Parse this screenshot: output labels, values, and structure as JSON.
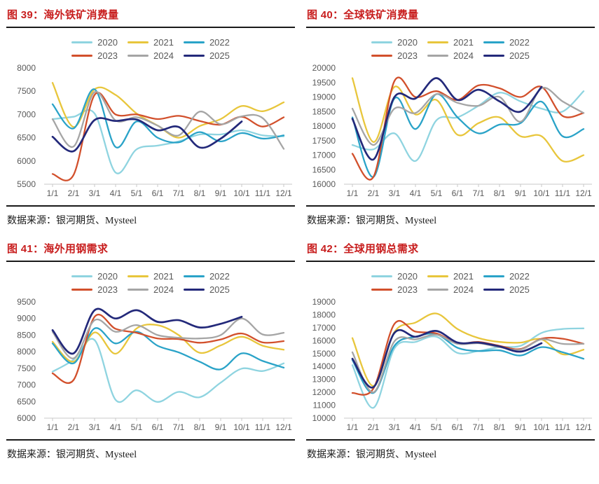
{
  "styles": {
    "title_color": "#c81e1e",
    "axis_text_color": "#595959",
    "axis_line_color": "#c9c9c9",
    "rule_color": "#1a1a1a",
    "background": "#ffffff"
  },
  "series_colors": {
    "2020": "#8fd4e0",
    "2021": "#e8c63c",
    "2022": "#2aa3c8",
    "2023": "#d2502c",
    "2024": "#a5a5a5",
    "2025": "#23297a"
  },
  "chart_data": [
    {
      "type": "line",
      "title": "图 39：海外铁矿消费量",
      "source": "数据来源：银河期货、Mysteel",
      "legend_position": "top",
      "grid": false,
      "x": [
        "1/1",
        "2/1",
        "3/1",
        "4/1",
        "5/1",
        "6/1",
        "7/1",
        "8/1",
        "9/1",
        "10/1",
        "11/1",
        "12/1"
      ],
      "ylim": [
        5500,
        8000
      ],
      "ystep": 500,
      "series": [
        {
          "name": "2020",
          "values": [
            6900,
            6950,
            7020,
            5750,
            6250,
            6330,
            6420,
            6570,
            6570,
            6660,
            6550,
            6530
          ]
        },
        {
          "name": "2021",
          "values": [
            7680,
            6730,
            7540,
            7420,
            7020,
            6760,
            6500,
            6750,
            6900,
            7180,
            7070,
            7260
          ]
        },
        {
          "name": "2022",
          "values": [
            7220,
            6700,
            7540,
            6300,
            6850,
            6500,
            6400,
            6620,
            6420,
            6600,
            6480,
            6550
          ]
        },
        {
          "name": "2023",
          "values": [
            5720,
            5700,
            7420,
            7000,
            7000,
            6900,
            6970,
            6860,
            6780,
            6950,
            6740,
            6940
          ]
        },
        {
          "name": "2024",
          "values": [
            6900,
            6310,
            7480,
            6870,
            6940,
            6760,
            6550,
            7060,
            6790,
            6960,
            6920,
            6260
          ]
        },
        {
          "name": "2025",
          "values": [
            6520,
            6210,
            6880,
            6860,
            6890,
            6660,
            6730,
            6290,
            6480,
            6850
          ]
        }
      ]
    },
    {
      "type": "line",
      "title": "图 40：全球铁矿消费量",
      "source": "数据来源：银河期货、Mysteel",
      "legend_position": "top",
      "grid": false,
      "x": [
        "1/1",
        "2/1",
        "3/1",
        "4/1",
        "5/1",
        "6/1",
        "7/1",
        "8/1",
        "9/1",
        "10/1",
        "11/1",
        "12/1"
      ],
      "ylim": [
        16000,
        20000
      ],
      "ystep": 500,
      "series": [
        {
          "name": "2020",
          "values": [
            17350,
            17200,
            17750,
            16800,
            18200,
            18300,
            18700,
            19150,
            18850,
            18600,
            18500,
            19200
          ]
        },
        {
          "name": "2021",
          "values": [
            19650,
            17450,
            19350,
            18400,
            18900,
            17700,
            18100,
            18300,
            17650,
            17650,
            16800,
            17000
          ]
        },
        {
          "name": "2022",
          "values": [
            18300,
            16250,
            18950,
            17900,
            19100,
            18300,
            17750,
            18050,
            18100,
            18840,
            17650,
            17900
          ]
        },
        {
          "name": "2023",
          "values": [
            17050,
            16250,
            19550,
            19000,
            19200,
            18900,
            19400,
            19300,
            19000,
            19350,
            18350,
            18450
          ]
        },
        {
          "name": "2024",
          "values": [
            18600,
            17350,
            18600,
            18450,
            19100,
            18800,
            18700,
            19000,
            18150,
            19300,
            18850,
            18450
          ]
        },
        {
          "name": "2025",
          "values": [
            18250,
            16850,
            19000,
            18950,
            19650,
            18900,
            19250,
            18850,
            18500,
            19350
          ]
        }
      ]
    },
    {
      "type": "line",
      "title": "图 41：海外用钢需求",
      "source": "数据来源：银河期货、Mysteel",
      "legend_position": "top",
      "grid": false,
      "x": [
        "1/1",
        "2/1",
        "3/1",
        "4/1",
        "5/1",
        "6/1",
        "7/1",
        "8/1",
        "9/1",
        "10/1",
        "11/1",
        "12/1"
      ],
      "ylim": [
        6000,
        9500
      ],
      "ystep": 500,
      "series": [
        {
          "name": "2020",
          "values": [
            7400,
            7760,
            8350,
            6550,
            6840,
            6490,
            6790,
            6630,
            7070,
            7490,
            7420,
            7650
          ]
        },
        {
          "name": "2021",
          "values": [
            8300,
            7700,
            8580,
            7940,
            8700,
            8800,
            8500,
            7970,
            8190,
            8450,
            8180,
            8060
          ]
        },
        {
          "name": "2022",
          "values": [
            8250,
            7650,
            8700,
            8250,
            8600,
            8180,
            7980,
            7700,
            7470,
            7950,
            7720,
            7520
          ]
        },
        {
          "name": "2023",
          "values": [
            7350,
            7150,
            9050,
            8690,
            8570,
            8400,
            8380,
            8270,
            8370,
            8550,
            8280,
            8320
          ]
        },
        {
          "name": "2024",
          "values": [
            8600,
            7800,
            8950,
            8600,
            8800,
            8500,
            8420,
            8400,
            8500,
            9000,
            8520,
            8570
          ]
        },
        {
          "name": "2025",
          "values": [
            8650,
            7950,
            9250,
            9000,
            9250,
            8900,
            8950,
            8730,
            8840,
            9050
          ]
        }
      ]
    },
    {
      "type": "line",
      "title": "图 42：全球用钢总需求",
      "source": "数据来源：银河期货、Mysteel",
      "legend_position": "top",
      "grid": false,
      "x": [
        "1/1",
        "2/1",
        "3/1",
        "4/1",
        "5/1",
        "6/1",
        "7/1",
        "8/1",
        "9/1",
        "10/1",
        "11/1",
        "12/1"
      ],
      "ylim": [
        10000,
        19000
      ],
      "ystep": 1000,
      "series": [
        {
          "name": "2020",
          "values": [
            14100,
            10800,
            15400,
            15900,
            16300,
            15050,
            15200,
            15500,
            15600,
            16600,
            16900,
            16950
          ]
        },
        {
          "name": "2021",
          "values": [
            16200,
            12500,
            16670,
            17400,
            18100,
            16900,
            16200,
            15900,
            15850,
            16100,
            14950,
            15300
          ]
        },
        {
          "name": "2022",
          "values": [
            14500,
            11950,
            15600,
            16300,
            16500,
            15450,
            15200,
            15250,
            14850,
            15500,
            15100,
            14600
          ]
        },
        {
          "name": "2023",
          "values": [
            11950,
            12300,
            17300,
            16700,
            16560,
            15800,
            15900,
            15600,
            15350,
            16150,
            16150,
            15750
          ]
        },
        {
          "name": "2024",
          "values": [
            15100,
            12000,
            15950,
            16100,
            16450,
            15750,
            15800,
            15500,
            15300,
            16100,
            15750,
            15750
          ]
        },
        {
          "name": "2025",
          "values": [
            14600,
            12400,
            16600,
            16300,
            16750,
            15850,
            15850,
            15550,
            15150,
            15800
          ]
        }
      ]
    }
  ]
}
